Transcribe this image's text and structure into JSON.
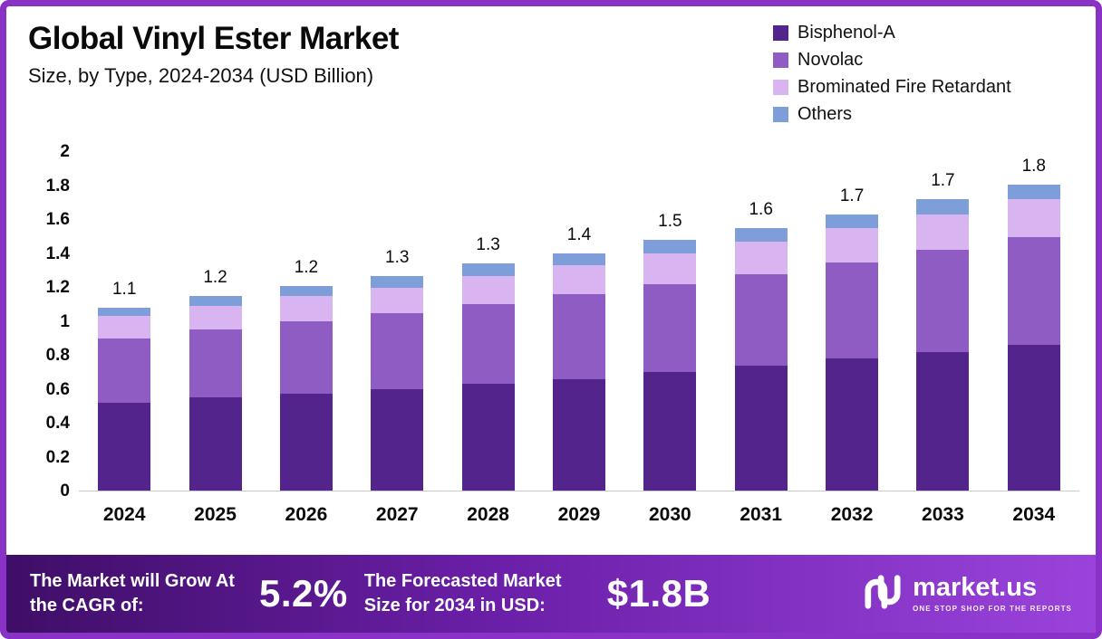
{
  "header": {
    "title": "Global Vinyl Ester Market",
    "subtitle": "Size, by Type, 2024-2034 (USD Billion)"
  },
  "chart_data": {
    "type": "bar",
    "stacked": true,
    "title": "Global Vinyl Ester Market Size, by Type, 2024-2034 (USD Billion)",
    "xlabel": "",
    "ylabel": "USD Billion",
    "ylim": [
      0,
      2
    ],
    "grid": false,
    "legend_position": "top-right",
    "y_ticks": [
      "0",
      "0.2",
      "0.4",
      "0.6",
      "0.8",
      "1",
      "1.2",
      "1.4",
      "1.6",
      "1.8",
      "2"
    ],
    "categories": [
      "2024",
      "2025",
      "2026",
      "2027",
      "2028",
      "2029",
      "2030",
      "2031",
      "2032",
      "2033",
      "2034"
    ],
    "series": [
      {
        "name": "Bisphenol-A",
        "color": "#53258C",
        "values": [
          0.52,
          0.55,
          0.57,
          0.6,
          0.63,
          0.66,
          0.7,
          0.74,
          0.78,
          0.82,
          0.86
        ]
      },
      {
        "name": "Novolac",
        "color": "#8E5CC3",
        "values": [
          0.38,
          0.4,
          0.43,
          0.45,
          0.47,
          0.5,
          0.52,
          0.54,
          0.57,
          0.6,
          0.64
        ]
      },
      {
        "name": "Brominated Fire Retardant",
        "color": "#D8B5F0",
        "values": [
          0.13,
          0.14,
          0.15,
          0.15,
          0.17,
          0.17,
          0.18,
          0.19,
          0.2,
          0.21,
          0.22
        ]
      },
      {
        "name": "Others",
        "color": "#7D9ED8",
        "values": [
          0.05,
          0.06,
          0.06,
          0.07,
          0.07,
          0.07,
          0.08,
          0.08,
          0.08,
          0.09,
          0.09
        ]
      }
    ],
    "totals_labels": [
      "1.1",
      "1.2",
      "1.2",
      "1.3",
      "1.3",
      "1.4",
      "1.5",
      "1.6",
      "1.7",
      "1.7",
      "1.8"
    ]
  },
  "footer": {
    "cagr_label": "The Market will Grow At the CAGR of:",
    "cagr_value": "5.2%",
    "forecast_label": "The Forecasted Market Size for 2034 in USD:",
    "forecast_value": "$1.8B",
    "brand": "market.us",
    "brand_tagline": "ONE STOP SHOP FOR THE REPORTS"
  },
  "colors": {
    "border": "#8A31C7",
    "footer_gradient_start": "#3F0E67",
    "footer_gradient_end": "#9A43DC"
  }
}
